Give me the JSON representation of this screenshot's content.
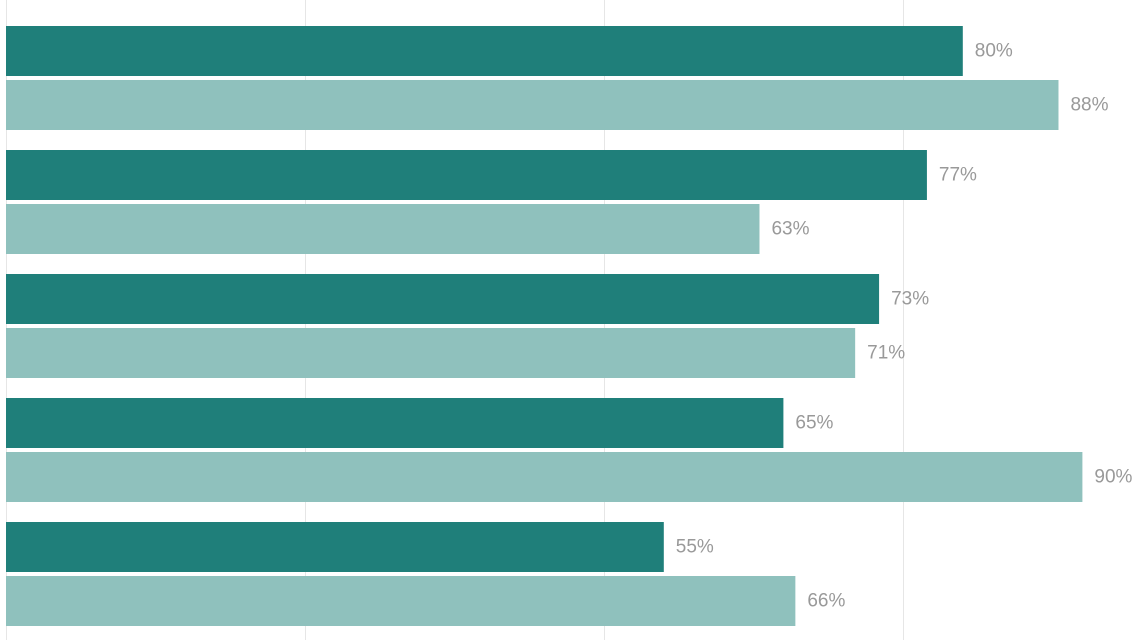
{
  "chart_data": {
    "type": "bar",
    "orientation": "horizontal",
    "title": "",
    "xlabel": "",
    "ylabel": "",
    "xlim": [
      0,
      90
    ],
    "value_suffix": "%",
    "grid": true,
    "gridlines_at": [
      0,
      25,
      50,
      75
    ],
    "categories": [
      "",
      "",
      "",
      "",
      ""
    ],
    "series": [
      {
        "color": "#1f7f7a",
        "values": [
          80,
          77,
          73,
          65,
          55
        ]
      },
      {
        "color": "#8fc1bd",
        "values": [
          88,
          63,
          71,
          90,
          66
        ]
      }
    ]
  }
}
